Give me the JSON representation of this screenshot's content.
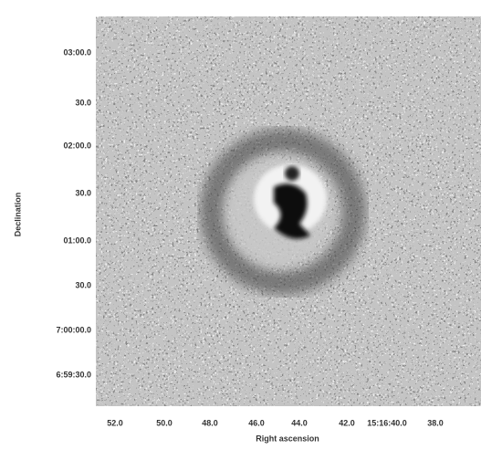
{
  "y_axis": {
    "label": "Declination",
    "ticks": [
      "03:00.0",
      "30.0",
      "02:00.0",
      "30.0",
      "01:00.0",
      "30.0",
      "7:00:00.0",
      "6:59:30.0"
    ]
  },
  "x_axis": {
    "label": "Right ascension",
    "ticks": [
      "52.0",
      "50.0",
      "48.0",
      "46.0",
      "44.0",
      "42.0",
      "15:16:40.0",
      "38.0"
    ]
  }
}
